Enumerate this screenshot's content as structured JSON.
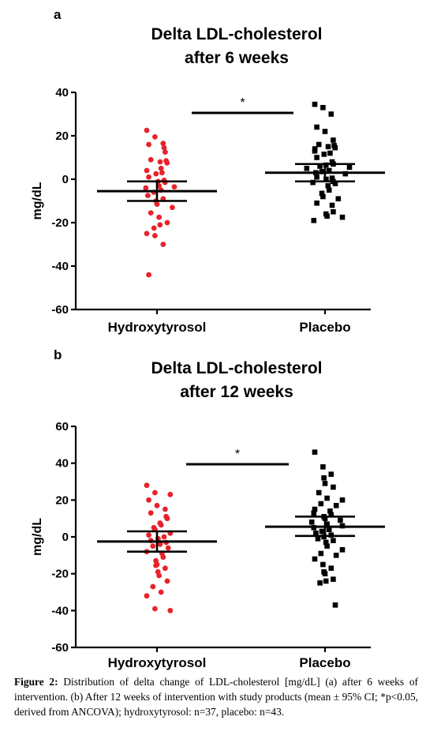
{
  "chart_data": [
    {
      "type": "scatter",
      "panel_label": "a",
      "title_line1": "Delta LDL-cholesterol",
      "title_line2": "after 6 weeks",
      "ylabel": "mg/dL",
      "ylim": [
        -60,
        40
      ],
      "yticks": [
        40,
        20,
        0,
        -20,
        -40,
        -60
      ],
      "categories": [
        "Hydroxytyrosol",
        "Placebo"
      ],
      "significance": "*",
      "series": [
        {
          "category": "Hydroxytyrosol",
          "color": "#e8222b",
          "marker": "circle",
          "mean": -5.5,
          "ci_low": -10,
          "ci_high": -1,
          "points": [
            22.5,
            19.5,
            16.5,
            16,
            14.5,
            12.5,
            9,
            8.5,
            8,
            7.5,
            5,
            4,
            3,
            2.5,
            1,
            -0.5,
            -1,
            -1.5,
            -3,
            -3.5,
            -4,
            -5,
            -6,
            -7.5,
            -9,
            -10,
            -11.5,
            -13,
            -15.5,
            -17.5,
            -20,
            -21,
            -22.5,
            -25,
            -26,
            -30,
            -44
          ]
        },
        {
          "category": "Placebo",
          "color": "#000000",
          "marker": "square",
          "mean": 3,
          "ci_low": -1,
          "ci_high": 7,
          "points": [
            34.5,
            33,
            30,
            24,
            22,
            18,
            16,
            15.5,
            15,
            14.5,
            14,
            13,
            12,
            11.5,
            10,
            8,
            7,
            6.5,
            6,
            5.5,
            5,
            4,
            3.5,
            3,
            2.5,
            1,
            0.5,
            0,
            -1,
            -1.5,
            -2,
            -3,
            -5,
            -6.5,
            -8,
            -9,
            -11,
            -12,
            -15,
            -16,
            -17,
            -17.5,
            -19
          ]
        }
      ]
    },
    {
      "type": "scatter",
      "panel_label": "b",
      "title_line1": "Delta LDL-cholesterol",
      "title_line2": "after 12 weeks",
      "ylabel": "mg/dL",
      "ylim": [
        -60,
        60
      ],
      "yticks": [
        60,
        40,
        20,
        0,
        -20,
        -40,
        -60
      ],
      "categories": [
        "Hydroxytyrosol",
        "Placebo"
      ],
      "significance": "*",
      "series": [
        {
          "category": "Hydroxytyrosol",
          "color": "#e8222b",
          "marker": "circle",
          "mean": -2.5,
          "ci_low": -8,
          "ci_high": 3,
          "points": [
            28,
            24,
            23,
            20,
            17,
            15,
            13,
            11,
            10,
            7.5,
            6.5,
            5,
            4,
            2,
            1,
            0,
            -1,
            -2,
            -3,
            -4,
            -5,
            -6,
            -8,
            -9,
            -11,
            -13,
            -15,
            -17,
            -19,
            -21,
            -24,
            -27,
            -30,
            -32,
            -39,
            -40,
            -15.5
          ]
        },
        {
          "category": "Placebo",
          "color": "#000000",
          "marker": "square",
          "mean": 5.5,
          "ci_low": 0.5,
          "ci_high": 11,
          "points": [
            46,
            38,
            34,
            32,
            29,
            27,
            24,
            21,
            20,
            18,
            17,
            15,
            14,
            12,
            11,
            10,
            9,
            8,
            7,
            6,
            5,
            4,
            3,
            2,
            1,
            0,
            -1,
            -2,
            -3,
            -5,
            -7,
            -9,
            -10,
            -12,
            -15,
            -17,
            -19,
            -20,
            -23,
            -24,
            -25,
            -37,
            13
          ]
        }
      ]
    }
  ],
  "caption": {
    "figure_label": "Figure 2:",
    "text": " Distribution of delta change of LDL-cholesterol [mg/dL] (a) after 6 weeks of intervention. (b) After 12 weeks of intervention with study products (mean ± 95% CI; *p<0.05, derived from ANCOVA); hydroxytyrosol: n=37, placebo: n=43."
  }
}
